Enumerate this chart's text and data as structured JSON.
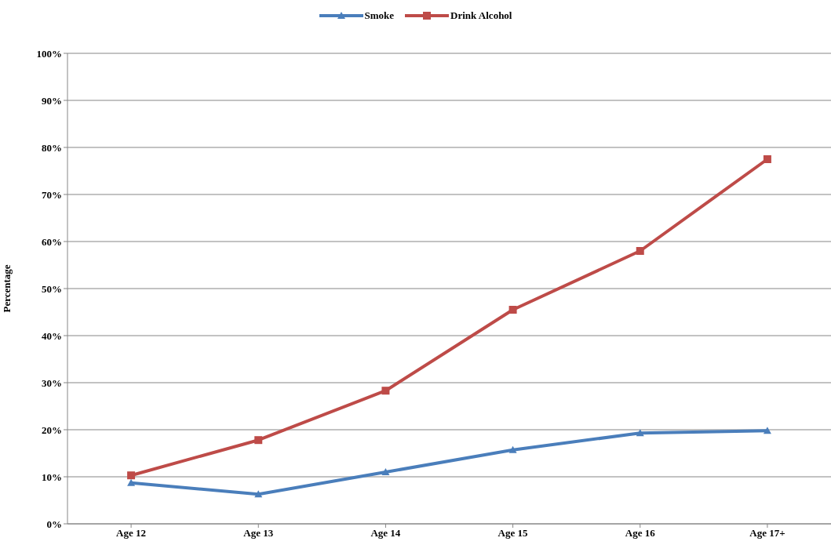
{
  "chart_data": {
    "type": "line",
    "ylabel": "Percentage",
    "categories": [
      "Age 12",
      "Age 13",
      "Age 14",
      "Age 15",
      "Age 16",
      "Age 17+"
    ],
    "series": [
      {
        "name": "Smoke",
        "color": "#4a7ebb",
        "marker": "triangle",
        "values": [
          8.7,
          6.3,
          11.0,
          15.7,
          19.3,
          19.8
        ]
      },
      {
        "name": "Drink Alcohol",
        "color": "#be4b48",
        "marker": "square",
        "values": [
          10.3,
          17.8,
          28.3,
          45.5,
          58.0,
          77.5
        ]
      }
    ],
    "ylim": [
      0,
      100
    ],
    "yticks": [
      {
        "value": 0,
        "label": "0%"
      },
      {
        "value": 10,
        "label": "10%"
      },
      {
        "value": 20,
        "label": "20%"
      },
      {
        "value": 30,
        "label": "30%"
      },
      {
        "value": 40,
        "label": "40%"
      },
      {
        "value": 50,
        "label": "50%"
      },
      {
        "value": 60,
        "label": "60%"
      },
      {
        "value": 70,
        "label": "70%"
      },
      {
        "value": 80,
        "label": "80%"
      },
      {
        "value": 90,
        "label": "90%"
      },
      {
        "value": 100,
        "label": "100%"
      }
    ],
    "grid": "y",
    "legend": "top",
    "line_style": "solid"
  }
}
